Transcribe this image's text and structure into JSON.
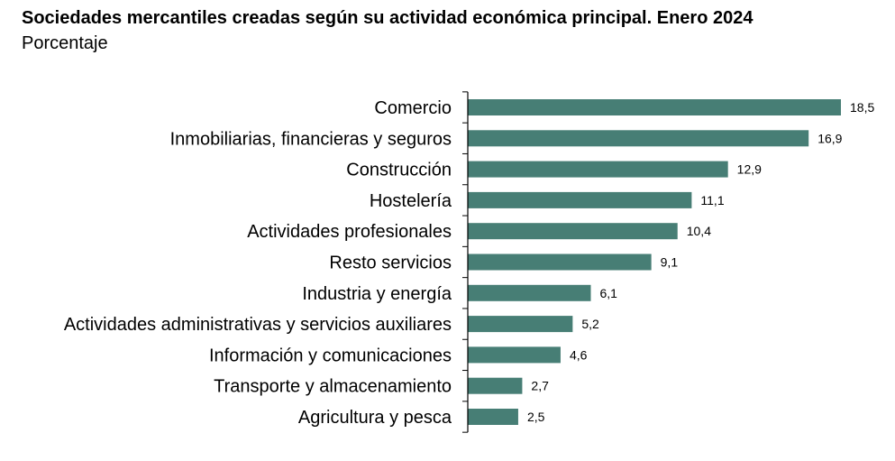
{
  "chart_data": {
    "type": "bar",
    "orientation": "horizontal",
    "title": "Sociedades mercantiles creadas según su actividad económica principal. Enero 2024",
    "subtitle": "Porcentaje",
    "categories": [
      "Comercio",
      "Inmobiliarias, financieras y seguros",
      "Construcción",
      "Hostelería",
      "Actividades profesionales",
      "Resto servicios",
      "Industria y energía",
      "Actividades administrativas y servicios auxiliares",
      "Información y comunicaciones",
      "Transporte y almacenamiento",
      "Agricultura y pesca"
    ],
    "values": [
      18.5,
      16.9,
      12.9,
      11.1,
      10.4,
      9.1,
      6.1,
      5.2,
      4.6,
      2.7,
      2.5
    ],
    "value_labels": [
      "18,5",
      "16,9",
      "12,9",
      "11,1",
      "10,4",
      "9,1",
      "6,1",
      "5,2",
      "4,6",
      "2,7",
      "2,5"
    ],
    "xlim": [
      0,
      18.5
    ],
    "bar_color": "#477e75",
    "grid": false,
    "legend": "none"
  }
}
